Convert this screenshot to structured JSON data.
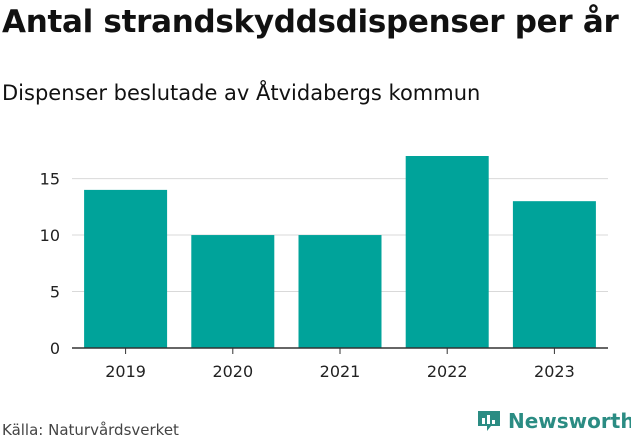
{
  "colors": {
    "bar": "#00a39a",
    "grid": "#d9d9d9",
    "axis": "#333333",
    "brand": "#2b8c83"
  },
  "icons": {
    "brand": "bar-chart-logo-icon"
  },
  "header": {
    "title": "Antal strandskyddsdispenser per år",
    "subtitle": "Dispenser beslutade av Åtvidabergs kommun"
  },
  "footer": {
    "source": "Källa: Naturvårdsverket",
    "brand_name": "Newsworthy"
  },
  "chart_data": {
    "type": "bar",
    "title": "Antal strandskyddsdispenser per år",
    "subtitle": "Dispenser beslutade av Åtvidabergs kommun",
    "xlabel": "",
    "ylabel": "",
    "categories": [
      "2019",
      "2020",
      "2021",
      "2022",
      "2023"
    ],
    "values": [
      14,
      10,
      10,
      17,
      13
    ],
    "ylim": [
      0,
      17
    ],
    "yticks": [
      0,
      5,
      10,
      15
    ],
    "grid": true,
    "legend": "none"
  }
}
